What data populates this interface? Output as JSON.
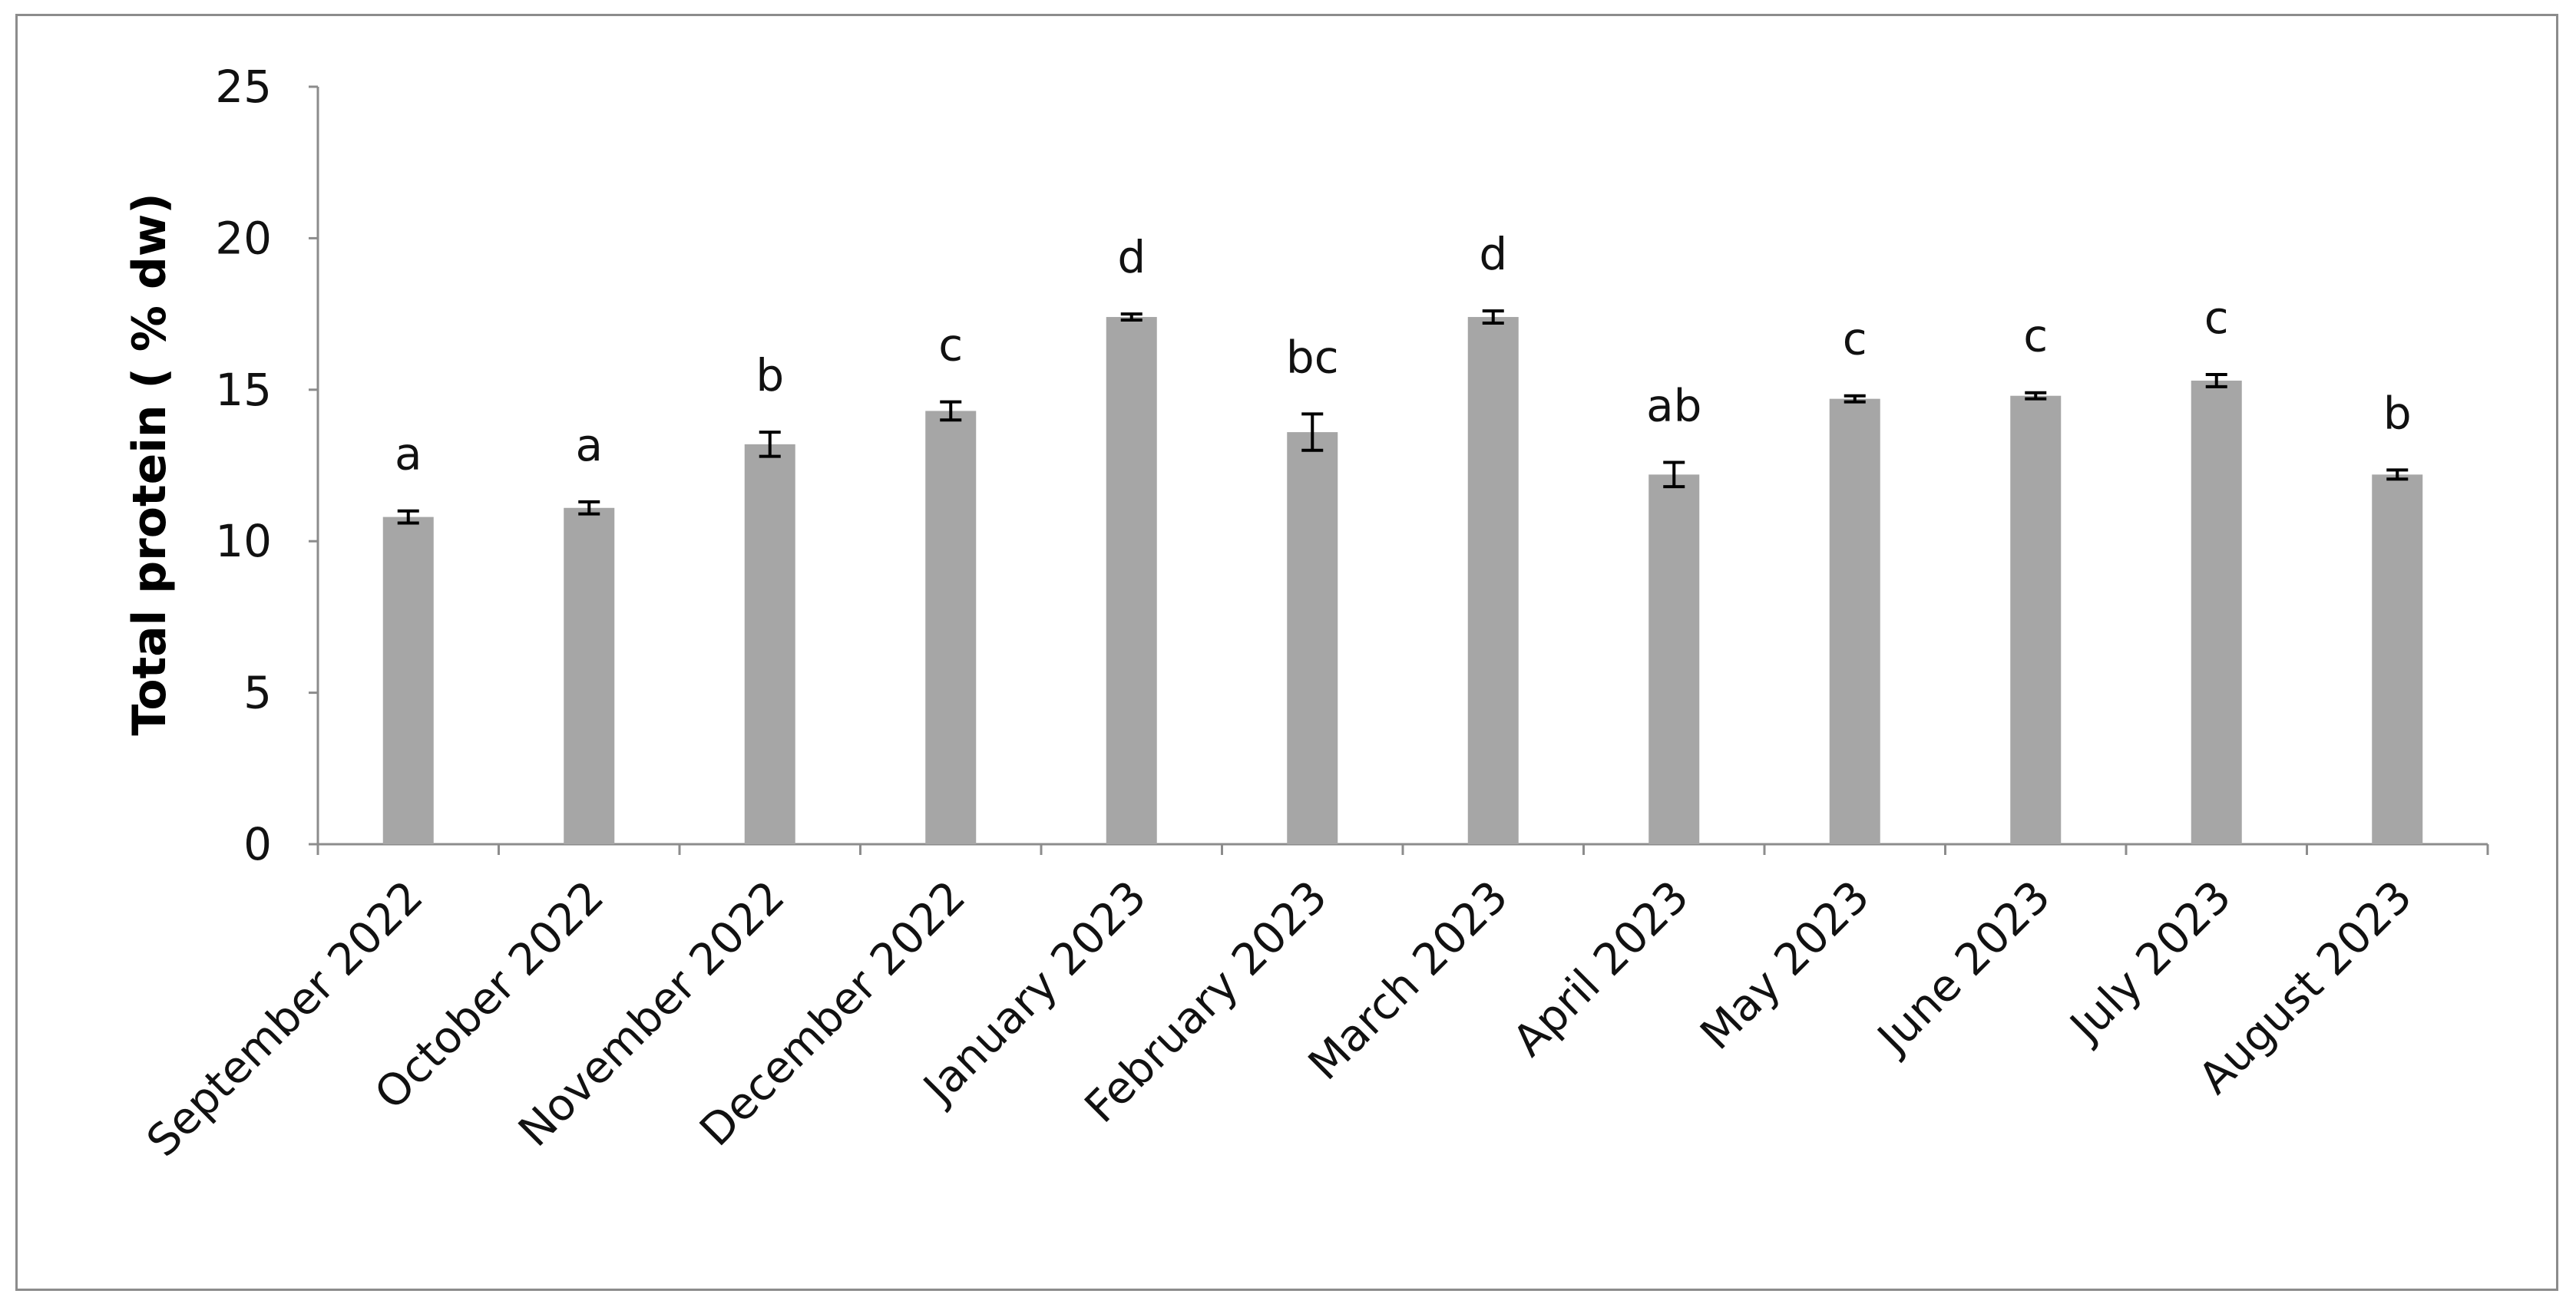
{
  "chart_data": {
    "type": "bar",
    "title": "",
    "xlabel": "",
    "ylabel": "Total protein  ( % dw)",
    "ylim": [
      0,
      25
    ],
    "yticks": [
      0,
      5,
      10,
      15,
      20,
      25
    ],
    "grid": false,
    "legend": "none",
    "bar_color": "#a6a6a6",
    "categories": [
      "September 2022",
      "October 2022",
      "November 2022",
      "December 2022",
      "January 2023",
      "February 2023",
      "March 2023",
      "April 2023",
      "May 2023",
      "June 2023",
      "July 2023",
      "August 2023"
    ],
    "values": [
      10.8,
      11.1,
      13.2,
      14.3,
      17.4,
      13.6,
      17.4,
      12.2,
      14.7,
      14.8,
      15.3,
      12.2
    ],
    "errors": [
      0.2,
      0.2,
      0.4,
      0.3,
      0.1,
      0.6,
      0.2,
      0.4,
      0.1,
      0.1,
      0.2,
      0.15
    ],
    "significance_letters": [
      "a",
      "a",
      "b",
      "c",
      "d",
      "bc",
      "d",
      "ab",
      "c",
      "c",
      "c",
      "b"
    ]
  }
}
